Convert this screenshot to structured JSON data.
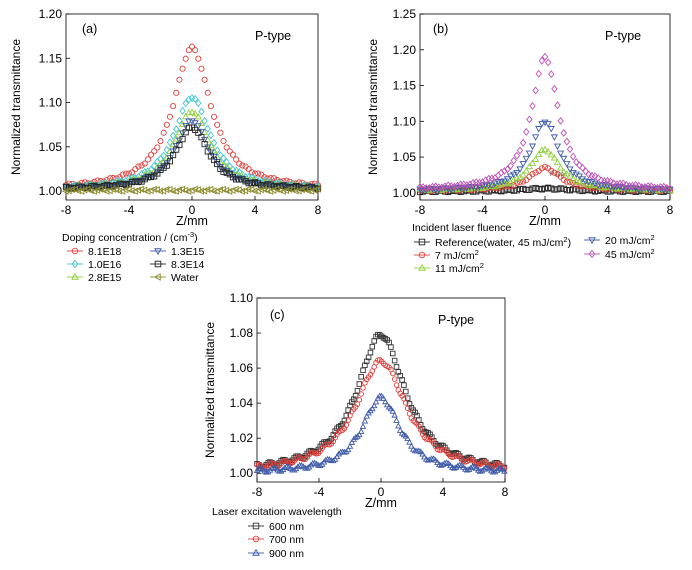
{
  "chart_data": [
    {
      "type": "scatter",
      "panel_label": "(a)",
      "annotation": "P-type",
      "xlabel": "Z/mm",
      "ylabel": "Normalized transmittance",
      "xlim": [
        -8,
        8
      ],
      "ylim": [
        0.99,
        1.2
      ],
      "xticks": [
        -8,
        -4,
        0,
        4,
        8
      ],
      "xtick_labels": [
        "-8",
        "-4",
        "0",
        "4",
        "8"
      ],
      "yticks": [
        1.0,
        1.05,
        1.1,
        1.15,
        1.2
      ],
      "ytick_labels": [
        "1.00",
        "1.05",
        "1.10",
        "1.15",
        "1.20"
      ],
      "legend_title_parts": [
        "Doping concentration / (cm",
        "-3",
        ")"
      ],
      "series": [
        {
          "name": "8.1E18",
          "color": "#e0403c",
          "marker": "circle",
          "peak": 1.162,
          "base": 1.002,
          "width": 1.45
        },
        {
          "name": "1.0E16",
          "color": "#42c6d6",
          "marker": "diamond",
          "peak": 1.106,
          "base": 1.002,
          "width": 1.4
        },
        {
          "name": "2.8E15",
          "color": "#8fcf3c",
          "marker": "triangle-up",
          "peak": 1.09,
          "base": 1.002,
          "width": 1.35
        },
        {
          "name": "1.3E15",
          "color": "#3e5ba8",
          "marker": "triangle-down",
          "peak": 1.08,
          "base": 1.002,
          "width": 1.3
        },
        {
          "name": "8.3E14",
          "color": "#222222",
          "marker": "square",
          "peak": 1.072,
          "base": 1.002,
          "width": 1.3
        },
        {
          "name": "Water",
          "color": "#8a8a2a",
          "marker": "triangle-left",
          "peak": 1.001,
          "base": 1.001,
          "width": 1.0
        }
      ]
    },
    {
      "type": "scatter",
      "panel_label": "(b)",
      "annotation": "P-type",
      "inner_label": "P-type",
      "xlabel": "Z/mm",
      "ylabel": "Normalized transmittance",
      "xlim": [
        -8,
        8
      ],
      "ylim": [
        0.99,
        1.25
      ],
      "xticks": [
        -8,
        -4,
        0,
        4,
        8
      ],
      "xtick_labels": [
        "-8",
        "-4",
        "0",
        "4",
        "8"
      ],
      "yticks": [
        1.0,
        1.05,
        1.1,
        1.15,
        1.2,
        1.25
      ],
      "ytick_labels": [
        "1.00",
        "1.05",
        "1.10",
        "1.15",
        "1.20",
        "1.25"
      ],
      "legend_title": "Incident laser fluence",
      "series": [
        {
          "name": "Reference(water, 45 mJ/cm",
          "sup": "2",
          "suffix": ")",
          "color": "#222222",
          "marker": "square",
          "peak": 1.006,
          "base": 1.002,
          "width": 2.0
        },
        {
          "name": "7 mJ/cm",
          "sup": "2",
          "suffix": "",
          "color": "#e0403c",
          "marker": "circle",
          "peak": 1.035,
          "base": 1.003,
          "width": 1.2
        },
        {
          "name": "11 mJ/cm",
          "sup": "2",
          "suffix": "",
          "color": "#8fcf3c",
          "marker": "triangle-up",
          "peak": 1.06,
          "base": 1.003,
          "width": 1.15
        },
        {
          "name": "20 mJ/cm",
          "sup": "2",
          "suffix": "",
          "color": "#3e5ba8",
          "marker": "triangle-down",
          "peak": 1.1,
          "base": 1.003,
          "width": 1.1
        },
        {
          "name": "45 mJ/cm",
          "sup": "2",
          "suffix": "",
          "color": "#c050b8",
          "marker": "diamond",
          "peak": 1.19,
          "base": 1.004,
          "width": 1.05
        }
      ]
    },
    {
      "type": "scatter",
      "panel_label": "(c)",
      "annotation": "P-type",
      "xlabel": "Z/mm",
      "ylabel": "Normalized transmittance",
      "xlim": [
        -8,
        8
      ],
      "ylim": [
        0.995,
        1.1
      ],
      "xticks": [
        -8,
        -4,
        0,
        4,
        8
      ],
      "xtick_labels": [
        "-8",
        "-4",
        "0",
        "4",
        "8"
      ],
      "yticks": [
        1.0,
        1.02,
        1.04,
        1.06,
        1.08,
        1.1
      ],
      "ytick_labels": [
        "1.00",
        "1.02",
        "1.04",
        "1.06",
        "1.08",
        "1.10"
      ],
      "legend_title": "Laser excitation wavelength",
      "series": [
        {
          "name": "600 nm",
          "color": "#333333",
          "marker": "square",
          "peak": 1.079,
          "base": 1.0,
          "width": 1.9
        },
        {
          "name": "700 nm",
          "color": "#e0403c",
          "marker": "circle",
          "peak": 1.064,
          "base": 1.0,
          "width": 2.0
        },
        {
          "name": "900 nm",
          "color": "#3e5ba8",
          "marker": "triangle-up",
          "peak": 1.043,
          "base": 1.0,
          "width": 1.5
        }
      ]
    }
  ]
}
